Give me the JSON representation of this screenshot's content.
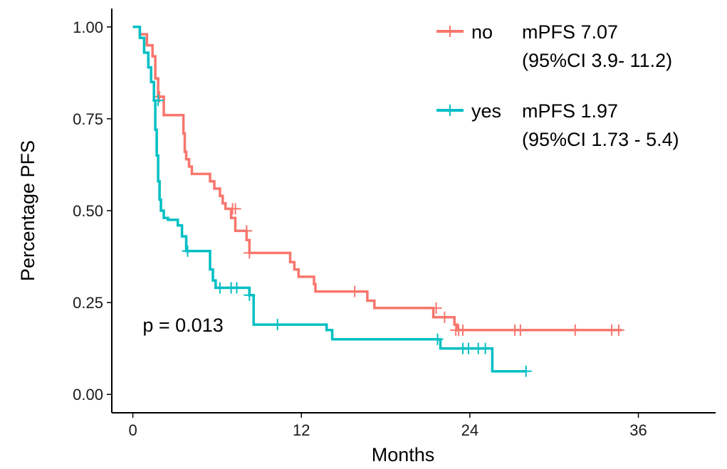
{
  "chart_data": {
    "type": "line",
    "title": "",
    "xlabel": "Months",
    "ylabel": "Percentage PFS",
    "xlim": [
      -1.5,
      41.5
    ],
    "ylim": [
      -0.05,
      1.05
    ],
    "x_ticks": [
      0,
      12,
      24,
      36
    ],
    "x_tick_labels": [
      "0",
      "12",
      "24",
      "36"
    ],
    "y_ticks": [
      0.0,
      0.25,
      0.5,
      0.75,
      1.0
    ],
    "y_tick_labels": [
      "0.00",
      "0.25",
      "0.50",
      "0.75",
      "1.00"
    ],
    "grid": false,
    "legend_position": "top-right",
    "annotation": "p = 0.013",
    "annotation_pos": [
      0.7,
      0.19
    ],
    "series": [
      {
        "name": "no",
        "color": "#F8766D",
        "legend_note": [
          "mPFS 7.07",
          "(95%CI 3.9- 11.2)"
        ],
        "steps": [
          [
            0,
            1.0
          ],
          [
            0.5,
            0.98
          ],
          [
            1.0,
            0.95
          ],
          [
            1.4,
            0.92
          ],
          [
            1.6,
            0.86
          ],
          [
            1.8,
            0.81
          ],
          [
            2.2,
            0.76
          ],
          [
            3.5,
            0.76
          ],
          [
            3.6,
            0.71
          ],
          [
            3.7,
            0.66
          ],
          [
            3.8,
            0.64
          ],
          [
            4.0,
            0.62
          ],
          [
            4.2,
            0.6
          ],
          [
            5.3,
            0.6
          ],
          [
            5.5,
            0.58
          ],
          [
            5.8,
            0.56
          ],
          [
            6.2,
            0.54
          ],
          [
            6.4,
            0.52
          ],
          [
            6.6,
            0.505
          ],
          [
            7.0,
            0.48
          ],
          [
            7.3,
            0.445
          ],
          [
            8.1,
            0.42
          ],
          [
            8.3,
            0.385
          ],
          [
            11.1,
            0.385
          ],
          [
            11.2,
            0.36
          ],
          [
            11.5,
            0.34
          ],
          [
            11.8,
            0.32
          ],
          [
            12.9,
            0.3
          ],
          [
            13.0,
            0.28
          ],
          [
            16.6,
            0.28
          ],
          [
            16.7,
            0.255
          ],
          [
            17.2,
            0.235
          ],
          [
            21.3,
            0.235
          ],
          [
            21.4,
            0.21
          ],
          [
            22.8,
            0.21
          ],
          [
            22.9,
            0.19
          ],
          [
            23.1,
            0.175
          ],
          [
            34.8,
            0.175
          ]
        ],
        "censors": [
          [
            1.9,
            0.81
          ],
          [
            7.1,
            0.505
          ],
          [
            7.3,
            0.505
          ],
          [
            8.1,
            0.445
          ],
          [
            8.3,
            0.385
          ],
          [
            15.8,
            0.28
          ],
          [
            21.6,
            0.235
          ],
          [
            22.2,
            0.21
          ],
          [
            23.0,
            0.175
          ],
          [
            23.2,
            0.175
          ],
          [
            23.5,
            0.175
          ],
          [
            27.2,
            0.175
          ],
          [
            27.6,
            0.175
          ],
          [
            31.5,
            0.175
          ],
          [
            34.1,
            0.175
          ],
          [
            34.6,
            0.175
          ]
        ]
      },
      {
        "name": "yes",
        "color": "#00BFC4",
        "legend_note": [
          "mPFS 1.97",
          "(95%CI 1.73 - 5.4)"
        ],
        "steps": [
          [
            0,
            1.0
          ],
          [
            0.5,
            0.97
          ],
          [
            0.8,
            0.93
          ],
          [
            1.1,
            0.89
          ],
          [
            1.3,
            0.85
          ],
          [
            1.5,
            0.8
          ],
          [
            1.6,
            0.72
          ],
          [
            1.7,
            0.65
          ],
          [
            1.8,
            0.58
          ],
          [
            1.9,
            0.53
          ],
          [
            2.0,
            0.5
          ],
          [
            2.2,
            0.48
          ],
          [
            2.5,
            0.475
          ],
          [
            3.2,
            0.46
          ],
          [
            3.5,
            0.43
          ],
          [
            3.8,
            0.39
          ],
          [
            5.4,
            0.39
          ],
          [
            5.5,
            0.34
          ],
          [
            5.7,
            0.31
          ],
          [
            5.9,
            0.29
          ],
          [
            8.3,
            0.27
          ],
          [
            8.6,
            0.19
          ],
          [
            13.7,
            0.19
          ],
          [
            13.8,
            0.175
          ],
          [
            14.2,
            0.15
          ],
          [
            21.8,
            0.15
          ],
          [
            21.9,
            0.125
          ],
          [
            25.5,
            0.125
          ],
          [
            25.6,
            0.063
          ],
          [
            28.0,
            0.063
          ]
        ],
        "censors": [
          [
            1.8,
            0.8
          ],
          [
            3.9,
            0.39
          ],
          [
            6.2,
            0.29
          ],
          [
            7.0,
            0.29
          ],
          [
            7.4,
            0.29
          ],
          [
            8.3,
            0.27
          ],
          [
            10.3,
            0.19
          ],
          [
            21.7,
            0.15
          ],
          [
            23.5,
            0.125
          ],
          [
            23.9,
            0.125
          ],
          [
            24.6,
            0.125
          ],
          [
            25.1,
            0.125
          ],
          [
            28.0,
            0.063
          ]
        ]
      }
    ]
  }
}
